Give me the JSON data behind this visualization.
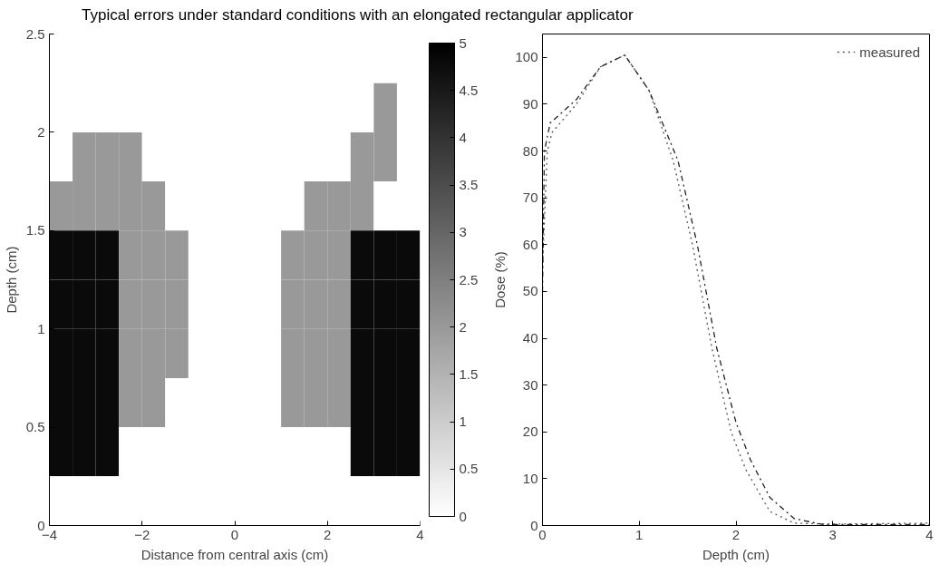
{
  "chart_data": [
    {
      "type": "heatmap",
      "title": "Typical errors under standard conditions with an elongated rectangular applicator",
      "xlabel": "Distance from central axis (cm)",
      "ylabel": "Depth (cm)",
      "x": [
        -3.75,
        -3.25,
        -2.75,
        -2.25,
        -1.75,
        -1.25,
        -0.75,
        -0.25,
        0.25,
        0.75,
        1.25,
        1.75,
        2.25,
        2.75,
        3.25,
        3.75
      ],
      "y": [
        2.375,
        2.125,
        1.875,
        1.625,
        1.375,
        1.125,
        0.875,
        0.625,
        0.375,
        0.125
      ],
      "cells": [
        [
          0,
          0,
          0,
          0,
          0,
          0,
          0,
          0,
          0,
          0,
          0,
          0,
          0,
          0,
          0,
          0
        ],
        [
          0,
          0,
          0,
          0,
          0,
          0,
          0,
          0,
          0,
          0,
          0,
          0,
          0,
          0,
          2,
          0
        ],
        [
          0,
          2,
          2,
          2,
          0,
          0,
          0,
          0,
          0,
          0,
          0,
          0,
          0,
          2,
          2,
          0
        ],
        [
          2,
          2,
          2,
          2,
          2,
          0,
          0,
          0,
          0,
          0,
          0,
          2,
          2,
          2,
          0,
          0
        ],
        [
          4.8,
          4.8,
          4.8,
          2,
          2,
          2,
          0,
          0,
          0,
          0,
          2,
          2,
          2,
          4.8,
          4.8,
          4.8
        ],
        [
          4.8,
          4.8,
          4.8,
          2,
          2,
          2,
          0,
          0,
          0,
          0,
          2,
          2,
          2,
          4.8,
          4.8,
          4.8
        ],
        [
          4.8,
          4.8,
          4.8,
          2,
          2,
          2,
          0,
          0,
          0,
          0,
          2,
          2,
          2,
          4.8,
          4.8,
          4.8
        ],
        [
          4.8,
          4.8,
          4.8,
          2,
          2,
          0,
          0,
          0,
          0,
          0,
          2,
          2,
          2,
          4.8,
          4.8,
          4.8
        ],
        [
          4.8,
          4.8,
          4.8,
          0,
          0,
          0,
          0,
          0,
          0,
          0,
          0,
          0,
          0,
          4.8,
          4.8,
          4.8
        ],
        [
          0,
          0,
          0,
          0,
          0,
          0,
          0,
          0,
          0,
          0,
          0,
          0,
          0,
          0,
          0,
          0
        ]
      ],
      "xlim": [
        -4,
        4
      ],
      "xticks": [
        -4,
        -2,
        0,
        2,
        4
      ],
      "ylim": [
        0,
        2.5
      ],
      "yticks": [
        0,
        0.5,
        1,
        1.5,
        2,
        2.5
      ],
      "clim": [
        0,
        5
      ],
      "cticks": [
        0,
        0.5,
        1,
        1.5,
        2,
        2.5,
        3,
        3.5,
        4,
        4.5,
        5
      ]
    },
    {
      "type": "line",
      "xlabel": "Depth (cm)",
      "ylabel": "Dose (%)",
      "xlim": [
        0,
        4
      ],
      "xticks": [
        0,
        1,
        2,
        3,
        4
      ],
      "ylim": [
        0,
        105
      ],
      "yticks": [
        0,
        10,
        20,
        30,
        40,
        50,
        60,
        70,
        80,
        90,
        100
      ],
      "legend": "top right",
      "grid": false,
      "series": [
        {
          "name": "measured",
          "color": "#555555",
          "line_style": "dotted",
          "x": [
            0,
            0.05,
            0.1,
            0.35,
            0.6,
            0.85,
            1.1,
            1.35,
            1.55,
            1.75,
            1.95,
            2.1,
            2.35,
            2.6,
            3,
            4
          ],
          "values": [
            55,
            80,
            84,
            90,
            98,
            100.5,
            93,
            78,
            60,
            38,
            20,
            12,
            3,
            0.5,
            0.3,
            0.5
          ]
        },
        {
          "color": "#222222",
          "line_style": "dashdot",
          "x": [
            0,
            0.02,
            0.08,
            0.35,
            0.6,
            0.85,
            1.1,
            1.4,
            1.6,
            1.8,
            2.0,
            2.15,
            2.35,
            2.6,
            2.9,
            4
          ],
          "values": [
            50,
            80,
            86,
            91,
            98,
            100.5,
            93,
            78,
            60,
            38,
            22,
            14,
            6,
            1.5,
            0.2,
            0.2
          ]
        }
      ]
    }
  ]
}
